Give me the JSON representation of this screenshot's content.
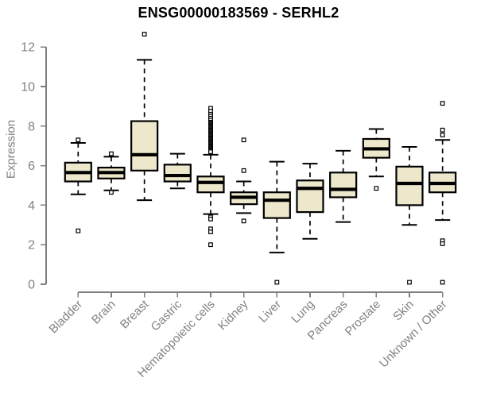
{
  "chart_data": {
    "type": "box",
    "title": "ENSG00000183569 - SERHL2",
    "ylabel": "Expression",
    "xlabel": "",
    "ylim": [
      0,
      12
    ],
    "yticks": [
      0,
      2,
      4,
      6,
      8,
      10,
      12
    ],
    "grid": false,
    "legend_position": "none",
    "categories": [
      "Bladder",
      "Brain",
      "Breast",
      "Gastric",
      "Hematopoietic cells",
      "Kidney",
      "Liver",
      "Lung",
      "Pancreas",
      "Prostate",
      "Skin",
      "Unknown / Other"
    ],
    "boxes": [
      {
        "category": "Bladder",
        "whisker_low": 4.55,
        "q1": 5.2,
        "median": 5.65,
        "q3": 6.15,
        "whisker_high": 7.15,
        "outliers": [
          7.3,
          2.7
        ]
      },
      {
        "category": "Brain",
        "whisker_low": 4.75,
        "q1": 5.35,
        "median": 5.65,
        "q3": 5.9,
        "whisker_high": 6.45,
        "outliers": [
          6.6,
          4.65
        ]
      },
      {
        "category": "Breast",
        "whisker_low": 4.25,
        "q1": 5.75,
        "median": 6.55,
        "q3": 8.25,
        "whisker_high": 11.35,
        "outliers": [
          12.65
        ]
      },
      {
        "category": "Gastric",
        "whisker_low": 4.85,
        "q1": 5.2,
        "median": 5.5,
        "q3": 6.05,
        "whisker_high": 6.6,
        "outliers": []
      },
      {
        "category": "Hematopoietic cells",
        "whisker_low": 3.55,
        "q1": 4.65,
        "median": 5.15,
        "q3": 5.45,
        "whisker_high": 6.55,
        "outliers": [
          8.9,
          8.75,
          8.6,
          8.5,
          8.4,
          8.3,
          8.2,
          8.15,
          8.1,
          8.05,
          8.0,
          7.95,
          7.9,
          7.85,
          7.8,
          7.75,
          7.7,
          7.65,
          7.6,
          7.55,
          7.5,
          7.45,
          7.4,
          7.35,
          7.3,
          7.25,
          7.2,
          7.15,
          7.1,
          7.05,
          7.0,
          6.95,
          6.9,
          6.85,
          6.8,
          6.75,
          6.7,
          3.4,
          3.3,
          2.8,
          2.65,
          2.0
        ]
      },
      {
        "category": "Kidney",
        "whisker_low": 3.6,
        "q1": 4.05,
        "median": 4.4,
        "q3": 4.65,
        "whisker_high": 5.2,
        "outliers": [
          7.3,
          5.75,
          3.2
        ]
      },
      {
        "category": "Liver",
        "whisker_low": 1.6,
        "q1": 3.35,
        "median": 4.25,
        "q3": 4.65,
        "whisker_high": 6.2,
        "outliers": [
          0.1
        ]
      },
      {
        "category": "Lung",
        "whisker_low": 2.3,
        "q1": 3.65,
        "median": 4.85,
        "q3": 5.25,
        "whisker_high": 6.1,
        "outliers": []
      },
      {
        "category": "Pancreas",
        "whisker_low": 3.15,
        "q1": 4.4,
        "median": 4.8,
        "q3": 5.65,
        "whisker_high": 6.75,
        "outliers": []
      },
      {
        "category": "Prostate",
        "whisker_low": 5.45,
        "q1": 6.4,
        "median": 6.85,
        "q3": 7.35,
        "whisker_high": 7.85,
        "outliers": [
          4.85
        ]
      },
      {
        "category": "Skin",
        "whisker_low": 3.0,
        "q1": 4.0,
        "median": 5.1,
        "q3": 5.95,
        "whisker_high": 6.95,
        "outliers": [
          0.1
        ]
      },
      {
        "category": "Unknown / Other",
        "whisker_low": 3.25,
        "q1": 4.65,
        "median": 5.1,
        "q3": 5.65,
        "whisker_high": 7.3,
        "outliers": [
          9.15,
          7.8,
          7.55,
          2.2,
          2.05,
          0.1
        ]
      }
    ],
    "colors": {
      "box_fill": "#EDE8CC",
      "box_border": "#000000",
      "median": "#000000",
      "whisker": "#000000",
      "outlier_stroke": "#000000",
      "outlier_fill": "#FFFFFF",
      "axis": "#7E7E7E",
      "tick_label": "#828282",
      "title": "#000000",
      "background": "#FFFFFF"
    }
  }
}
